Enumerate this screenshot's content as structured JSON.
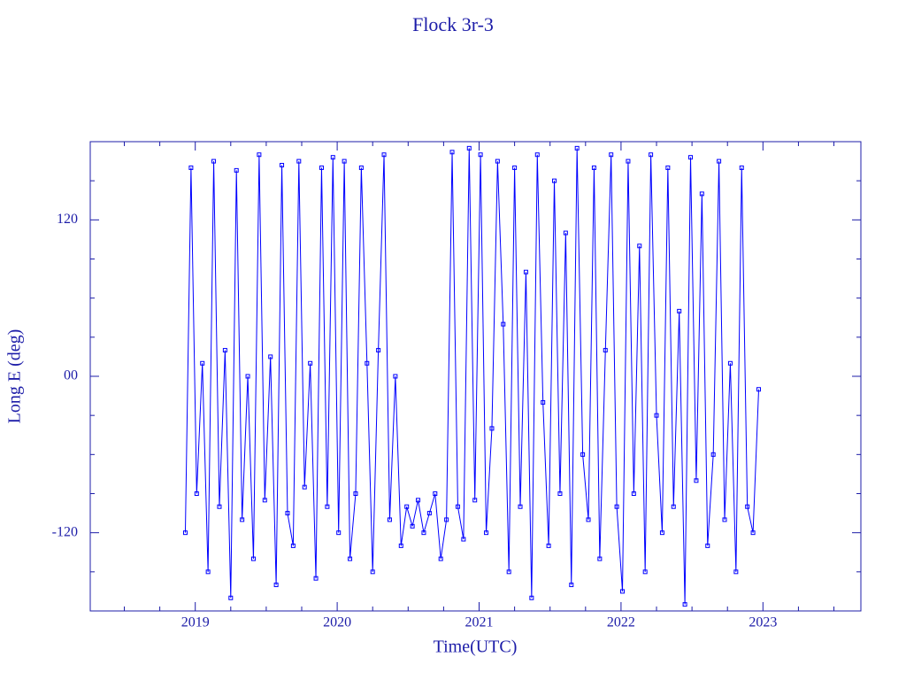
{
  "chart_data": {
    "type": "line",
    "title": "Flock 3r-3",
    "x_label": "Time(UTC)",
    "y_label": "Long E (deg)",
    "x": [
      2018.93,
      2018.97,
      2019.01,
      2019.05,
      2019.09,
      2019.13,
      2019.17,
      2019.21,
      2019.25,
      2019.29,
      2019.33,
      2019.37,
      2019.41,
      2019.45,
      2019.49,
      2019.53,
      2019.57,
      2019.61,
      2019.65,
      2019.69,
      2019.73,
      2019.77,
      2019.81,
      2019.85,
      2019.89,
      2019.93,
      2019.97,
      2020.01,
      2020.05,
      2020.09,
      2020.13,
      2020.17,
      2020.21,
      2020.25,
      2020.29,
      2020.33,
      2020.37,
      2020.41,
      2020.45,
      2020.49,
      2020.53,
      2020.57,
      2020.61,
      2020.65,
      2020.69,
      2020.73,
      2020.77,
      2020.81,
      2020.85,
      2020.89,
      2020.93,
      2020.97,
      2021.01,
      2021.05,
      2021.09,
      2021.13,
      2021.17,
      2021.21,
      2021.25,
      2021.29,
      2021.33,
      2021.37,
      2021.41,
      2021.45,
      2021.49,
      2021.53,
      2021.57,
      2021.61,
      2021.65,
      2021.69,
      2021.73,
      2021.77,
      2021.81,
      2021.85,
      2021.89,
      2021.93,
      2021.97,
      2022.01,
      2022.05,
      2022.09,
      2022.13,
      2022.17,
      2022.21,
      2022.25,
      2022.29,
      2022.33,
      2022.37,
      2022.41,
      2022.45,
      2022.49,
      2022.53,
      2022.57,
      2022.61,
      2022.65,
      2022.69,
      2022.73,
      2022.77,
      2022.81,
      2022.85,
      2022.89,
      2022.93,
      2022.97
    ],
    "series": [
      {
        "color": "#0000ff",
        "values": [
          -120,
          160,
          -90,
          10,
          -150,
          165,
          -100,
          20,
          -170,
          158,
          -110,
          0,
          -140,
          170,
          -95,
          15,
          -160,
          162,
          -105,
          -130,
          165,
          -85,
          10,
          -155,
          160,
          -100,
          168,
          -120,
          165,
          -140,
          -90,
          160,
          10,
          -150,
          20,
          170,
          -110,
          0,
          -130,
          -100,
          -115,
          -95,
          -120,
          -105,
          -90,
          -140,
          -110,
          172,
          -100,
          -125,
          175,
          -95,
          170,
          -120,
          -40,
          165,
          40,
          -150,
          160,
          -100,
          80,
          -170,
          170,
          -20,
          -130,
          150,
          -90,
          110,
          -160,
          175,
          -60,
          -110,
          160,
          -140,
          20,
          170,
          -100,
          -165,
          165,
          -90,
          100,
          -150,
          170,
          -30,
          -120,
          160,
          -100,
          50,
          -175,
          168,
          -80,
          140,
          -130,
          -60,
          165,
          -110,
          10,
          -150,
          160,
          -100,
          -120,
          -10
        ]
      }
    ],
    "xlim": [
      2018.26,
      2023.69
    ],
    "ylim": [
      -180,
      180
    ],
    "xticks": [
      2019,
      2020,
      2021,
      2022,
      2023
    ],
    "xminorticks": [
      2018.5,
      2018.75,
      2019.25,
      2019.5,
      2019.75,
      2020.25,
      2020.5,
      2020.75,
      2021.25,
      2021.5,
      2021.75,
      2022.25,
      2022.5,
      2022.75,
      2023.25,
      2023.5
    ],
    "yticks": [
      -120,
      {
        "value": 0,
        "label": "00"
      },
      120
    ],
    "yminorticks": [
      -150,
      -90,
      -60,
      -30,
      30,
      60,
      90,
      150
    ],
    "axis_color": "#1c1ca8"
  }
}
